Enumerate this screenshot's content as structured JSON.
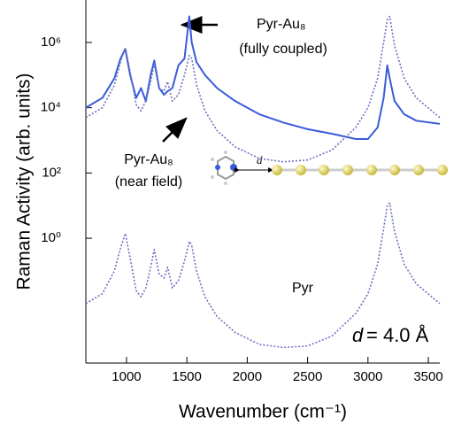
{
  "chart_data": {
    "type": "line",
    "ylabel": "Raman Activity (arb. units)",
    "xlabel": "Wavenumber (cm⁻¹)",
    "log_y": true,
    "x": [
      663,
      800,
      900,
      950,
      990,
      1030,
      1080,
      1120,
      1160,
      1200,
      1230,
      1270,
      1310,
      1340,
      1380,
      1430,
      1480,
      1520,
      1540,
      1580,
      1650,
      1750,
      1900,
      2100,
      2300,
      2500,
      2700,
      2900,
      3000,
      3080,
      3130,
      3160,
      3180,
      3220,
      3300,
      3400,
      3595
    ],
    "series": [
      {
        "label_lines": [
          "Pyr-Au₈",
          "(fully coupled)"
        ],
        "color": "#3a5bd9",
        "line_style": "solid",
        "values": [
          10000,
          20000,
          80000,
          320000,
          630000,
          100000,
          20000,
          40000,
          16000,
          100000,
          280000,
          40000,
          25000,
          32000,
          40000,
          200000,
          320000,
          6300000,
          1000000,
          250000,
          100000,
          40000,
          16000,
          6300,
          3500,
          2200,
          1600,
          1100,
          1100,
          2500,
          20000,
          200000,
          80000,
          16000,
          6300,
          4000,
          3200
        ]
      },
      {
        "label_lines": [
          "Pyr-Au₈",
          "(near field)"
        ],
        "color": "#6b6fc0",
        "line_style": "dotted",
        "values": [
          5000,
          10000,
          50000,
          250000,
          700000,
          125000,
          12500,
          8000,
          16000,
          63000,
          220000,
          40000,
          32000,
          63000,
          16000,
          25000,
          100000,
          400000,
          320000,
          50000,
          8000,
          2000,
          630,
          280,
          220,
          250,
          500,
          2500,
          10000,
          80000,
          1000000,
          5000000,
          6300000,
          800000,
          80000,
          20000,
          5000
        ]
      },
      {
        "label_lines": [
          "Pyr"
        ],
        "color": "#6b6fc0",
        "line_style": "dotted",
        "values": [
          0.01,
          0.02,
          0.1,
          0.5,
          1.4,
          0.25,
          0.025,
          0.016,
          0.03,
          0.13,
          0.45,
          0.08,
          0.06,
          0.13,
          0.03,
          0.05,
          0.2,
          0.8,
          0.6,
          0.1,
          0.016,
          0.004,
          0.0013,
          0.00056,
          0.00045,
          0.0005,
          0.001,
          0.005,
          0.02,
          0.16,
          2,
          10,
          12,
          1.6,
          0.16,
          0.04,
          0.01
        ]
      }
    ],
    "xlim": [
      663,
      3595
    ],
    "xticks": [
      1000,
      1500,
      2000,
      2500,
      3000,
      3500
    ],
    "ylim": [
      0.00015,
      20000000
    ],
    "yticks": [
      {
        "value": 1,
        "label": "10⁰"
      },
      {
        "value": 100,
        "label": "10²"
      },
      {
        "value": 10000,
        "label": "10⁴"
      },
      {
        "value": 1000000,
        "label": "10⁶"
      }
    ],
    "distance_note": {
      "symbol": "d",
      "text": "= 4.0 Å"
    },
    "inset_label": "d"
  }
}
